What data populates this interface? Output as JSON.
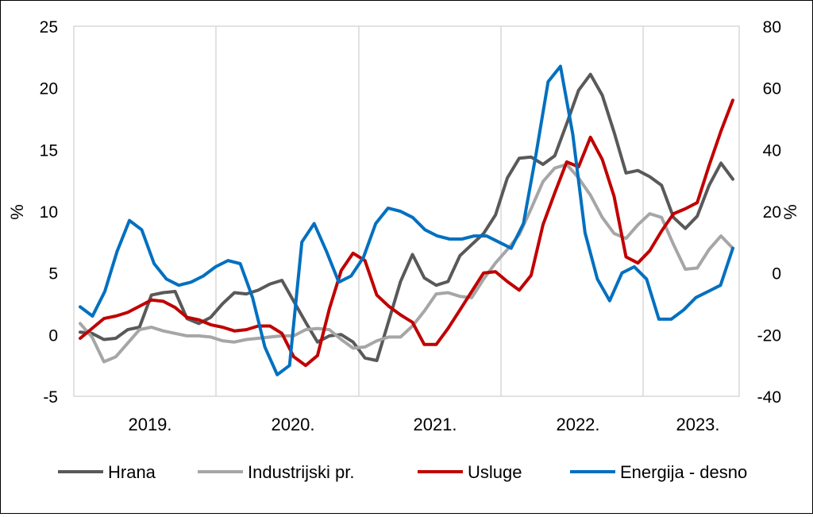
{
  "chart_data": {
    "type": "line",
    "y_left": {
      "label": "%",
      "range": [
        -5,
        25
      ],
      "ticks": [
        "-5",
        "0",
        "5",
        "10",
        "15",
        "20",
        "25"
      ]
    },
    "y_right": {
      "label": "%",
      "range": [
        -40,
        80
      ],
      "ticks": [
        "-40",
        "-20",
        "0",
        "20",
        "40",
        "60",
        "80"
      ]
    },
    "x_ticks": [
      "2019.",
      "2020.",
      "2021.",
      "2022.",
      "2023."
    ],
    "grid": "vertical",
    "legend_position": "bottom",
    "series": [
      {
        "name": "Hrana",
        "axis": "left",
        "color": "#595959",
        "values": [
          0.2,
          0.1,
          -0.4,
          -0.3,
          0.4,
          0.6,
          3.2,
          3.4,
          3.5,
          1.3,
          0.9,
          1.4,
          2.5,
          3.4,
          3.3,
          3.6,
          4.1,
          4.4,
          2.7,
          1,
          -0.6,
          -0.1,
          0,
          -0.6,
          -1.9,
          -2.1,
          1.1,
          4.3,
          6.5,
          4.6,
          4,
          4.3,
          6.4,
          7.3,
          8.2,
          9.7,
          12.7,
          14.3,
          14.4,
          13.8,
          14.5,
          17.1,
          19.8,
          21.1,
          19.4,
          16.4,
          13.1,
          13.3,
          12.8,
          12.1,
          9.5,
          8.6,
          9.6,
          12.1,
          13.9,
          12.6
        ]
      },
      {
        "name": "Industrijski pr.",
        "axis": "left",
        "color": "#a6a6a6",
        "values": [
          0.9,
          -0.2,
          -2.2,
          -1.8,
          -0.7,
          0.4,
          0.6,
          0.3,
          0.1,
          -0.1,
          -0.1,
          -0.2,
          -0.5,
          -0.6,
          -0.4,
          -0.3,
          -0.2,
          -0.1,
          -0.1,
          0.4,
          0.5,
          0.4,
          -0.4,
          -1.1,
          -1,
          -0.5,
          -0.2,
          -0.2,
          0.7,
          1.9,
          3.3,
          3.4,
          3.1,
          3,
          4.5,
          5.8,
          6.9,
          8.1,
          10.2,
          12.4,
          13.5,
          13.8,
          12.7,
          11.3,
          9.5,
          8.2,
          7.8,
          8.9,
          9.8,
          9.5,
          7.3,
          5.3,
          5.4,
          6.9,
          8,
          7
        ]
      },
      {
        "name": "Usluge",
        "axis": "left",
        "color": "#c00000",
        "values": [
          -0.3,
          0.5,
          1.3,
          1.5,
          1.8,
          2.3,
          2.8,
          2.7,
          2.2,
          1.4,
          1.2,
          0.8,
          0.6,
          0.3,
          0.4,
          0.7,
          0.7,
          0.1,
          -1.8,
          -2.5,
          -1.7,
          2.1,
          5.2,
          6.6,
          6,
          3.2,
          2.3,
          1.6,
          1,
          -0.8,
          -0.8,
          0.5,
          2,
          3.5,
          5,
          5.1,
          4.3,
          3.6,
          4.8,
          8.9,
          11.5,
          14,
          13.6,
          16,
          14.2,
          11.2,
          6.3,
          5.8,
          6.8,
          8.4,
          9.8,
          10.2,
          10.7,
          13.7,
          16.5,
          19
        ]
      },
      {
        "name": "Energija - desno",
        "axis": "right",
        "color": "#0070c0",
        "values": [
          -11,
          -14,
          -6,
          7,
          17,
          14,
          3,
          -2,
          -4,
          -3,
          -1,
          2,
          4,
          3,
          -8,
          -24,
          -33,
          -30,
          10,
          16,
          7,
          -3,
          -1,
          5,
          16,
          21,
          20,
          18,
          14,
          12,
          11,
          11,
          12,
          12,
          10,
          8,
          16,
          38,
          62,
          67,
          45,
          13,
          -2,
          -9,
          0,
          2,
          -2,
          -15,
          -15,
          -12,
          -8,
          -6,
          -4,
          8
        ]
      }
    ],
    "legend": [
      "Hrana",
      "Industrijski pr.",
      "Usluge",
      "Energija - desno"
    ]
  }
}
